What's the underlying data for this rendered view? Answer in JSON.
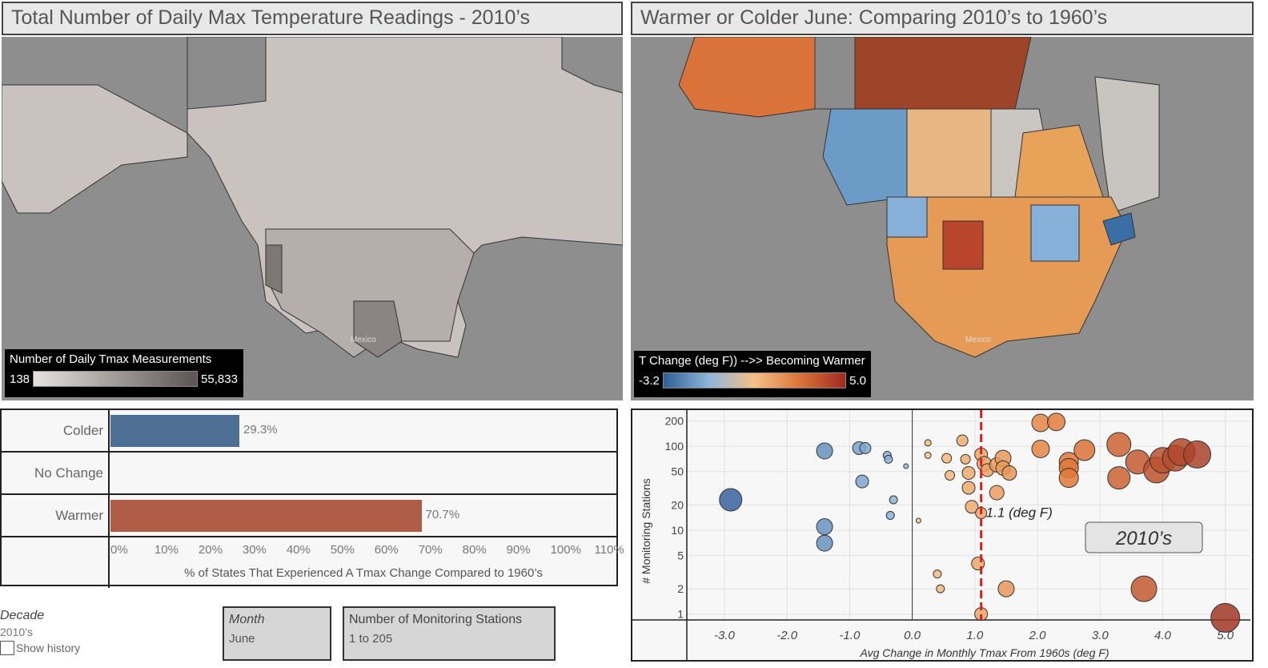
{
  "left_map": {
    "title": "Total Number of Daily Max Temperature Readings - 2010’s",
    "legend_title": "Number of Daily Tmax Measurements",
    "legend_min": "138",
    "legend_max": "55,833",
    "mexico_label": "Mexico"
  },
  "right_map": {
    "title": "Warmer or Colder June: Comparing  2010’s to 1960’s",
    "legend_title": "T Change (deg F)) -->> Becoming Warmer",
    "legend_min": "-3.2",
    "legend_max": "5.0",
    "mexico_label": "Mexico"
  },
  "bar_chart": {
    "rows": [
      {
        "label": "Colder",
        "value": 29.3,
        "value_label": "29.3%",
        "color": "#4e6f94"
      },
      {
        "label": "No Change",
        "value": 0,
        "value_label": "",
        "color": "#999999"
      },
      {
        "label": "Warmer",
        "value": 70.7,
        "value_label": "70.7%",
        "color": "#b05d47"
      }
    ],
    "ticks": [
      "0%",
      "10%",
      "20%",
      "30%",
      "40%",
      "50%",
      "60%",
      "70%",
      "80%",
      "90%",
      "100%",
      "110%"
    ],
    "x_max": 115,
    "axis_title": "% of States That Experienced A Tmax Change Compared to 1960’s"
  },
  "chart_data": {
    "type": "scatter",
    "title": "",
    "xlabel": "Avg Change in Monthly Tmax From 1960s (deg F)",
    "ylabel": "# Monitoring Stations",
    "xlim": [
      -3.6,
      5.4
    ],
    "ylim_log": [
      0.85,
      270
    ],
    "x_ticks": [
      "-3.0",
      "-2.0",
      "-1.0",
      "0.0",
      "1.0",
      "2.0",
      "3.0",
      "4.0",
      "5.0"
    ],
    "x_tick_values": [
      -3,
      -2,
      -1,
      0,
      1,
      2,
      3,
      4,
      5
    ],
    "y_ticks": [
      "1",
      "2",
      "5",
      "10",
      "20",
      "50",
      "100",
      "200"
    ],
    "y_tick_values": [
      1,
      2,
      5,
      10,
      20,
      50,
      100,
      200
    ],
    "reference_line": {
      "x": 1.1,
      "label": "1.1 (deg F)"
    },
    "annotation": "2010’s",
    "points": [
      {
        "x": -2.9,
        "y": 23,
        "size": 14
      },
      {
        "x": -1.4,
        "y": 88,
        "size": 10
      },
      {
        "x": -1.4,
        "y": 11,
        "size": 10
      },
      {
        "x": -1.4,
        "y": 7,
        "size": 10
      },
      {
        "x": -0.85,
        "y": 95,
        "size": 8
      },
      {
        "x": -0.75,
        "y": 95,
        "size": 7
      },
      {
        "x": -0.8,
        "y": 38,
        "size": 8
      },
      {
        "x": -0.4,
        "y": 78,
        "size": 5
      },
      {
        "x": -0.38,
        "y": 70,
        "size": 5
      },
      {
        "x": -0.3,
        "y": 23,
        "size": 5
      },
      {
        "x": -0.35,
        "y": 15,
        "size": 5
      },
      {
        "x": -0.1,
        "y": 58,
        "size": 3
      },
      {
        "x": 0.1,
        "y": 13,
        "size": 3
      },
      {
        "x": 0.25,
        "y": 110,
        "size": 4
      },
      {
        "x": 0.25,
        "y": 78,
        "size": 4
      },
      {
        "x": 0.4,
        "y": 3,
        "size": 5
      },
      {
        "x": 0.45,
        "y": 2,
        "size": 5
      },
      {
        "x": 0.55,
        "y": 72,
        "size": 6
      },
      {
        "x": 0.6,
        "y": 45,
        "size": 6
      },
      {
        "x": 0.8,
        "y": 117,
        "size": 7
      },
      {
        "x": 0.85,
        "y": 70,
        "size": 6
      },
      {
        "x": 0.9,
        "y": 48,
        "size": 8
      },
      {
        "x": 0.9,
        "y": 32,
        "size": 8
      },
      {
        "x": 0.95,
        "y": 19,
        "size": 8
      },
      {
        "x": 1.05,
        "y": 4,
        "size": 8
      },
      {
        "x": 1.1,
        "y": 1,
        "size": 8
      },
      {
        "x": 1.1,
        "y": 80,
        "size": 8
      },
      {
        "x": 1.1,
        "y": 16,
        "size": 7
      },
      {
        "x": 1.15,
        "y": 62,
        "size": 9
      },
      {
        "x": 1.2,
        "y": 52,
        "size": 8
      },
      {
        "x": 1.35,
        "y": 28,
        "size": 9
      },
      {
        "x": 1.35,
        "y": 60,
        "size": 9
      },
      {
        "x": 1.45,
        "y": 72,
        "size": 10
      },
      {
        "x": 1.45,
        "y": 55,
        "size": 9
      },
      {
        "x": 1.55,
        "y": 48,
        "size": 9
      },
      {
        "x": 1.5,
        "y": 2,
        "size": 10
      },
      {
        "x": 2.05,
        "y": 190,
        "size": 11
      },
      {
        "x": 2.05,
        "y": 93,
        "size": 11
      },
      {
        "x": 2.3,
        "y": 195,
        "size": 11
      },
      {
        "x": 2.5,
        "y": 65,
        "size": 12
      },
      {
        "x": 2.5,
        "y": 55,
        "size": 12
      },
      {
        "x": 2.5,
        "y": 42,
        "size": 12
      },
      {
        "x": 2.75,
        "y": 90,
        "size": 13
      },
      {
        "x": 3.3,
        "y": 105,
        "size": 15
      },
      {
        "x": 3.3,
        "y": 42,
        "size": 14
      },
      {
        "x": 3.6,
        "y": 65,
        "size": 15
      },
      {
        "x": 3.7,
        "y": 2,
        "size": 16
      },
      {
        "x": 3.9,
        "y": 52,
        "size": 16
      },
      {
        "x": 4.0,
        "y": 68,
        "size": 16
      },
      {
        "x": 4.2,
        "y": 72,
        "size": 16
      },
      {
        "x": 4.3,
        "y": 85,
        "size": 17
      },
      {
        "x": 4.55,
        "y": 80,
        "size": 17
      },
      {
        "x": 5.0,
        "y": 0.9,
        "size": 18
      }
    ]
  },
  "filters": {
    "decade_title": "Decade",
    "decade_value": "2010’s",
    "show_history": "Show history",
    "month_title": "Month",
    "month_value": "June",
    "stations_title": "Number of Monitoring Stations",
    "stations_value": "1 to 205"
  },
  "colors": {
    "cold": "#3a6ea5",
    "warm": "#b8452c",
    "reference": "#d9221c"
  }
}
